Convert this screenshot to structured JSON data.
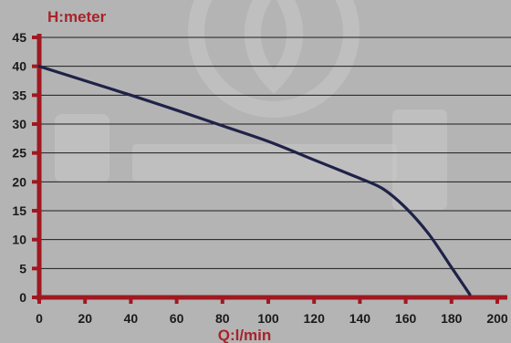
{
  "chart_data": {
    "type": "line",
    "xlabel": "Q:l/min",
    "ylabel": "H:meter",
    "xlim": [
      0,
      200
    ],
    "ylim": [
      0,
      45
    ],
    "x_ticks": [
      0,
      20,
      40,
      60,
      80,
      100,
      120,
      140,
      160,
      180,
      200
    ],
    "y_ticks": [
      0,
      5,
      10,
      15,
      20,
      25,
      30,
      35,
      40,
      45
    ],
    "grid": "horizontal",
    "series": [
      {
        "x": [
          0,
          20,
          40,
          60,
          80,
          100,
          120,
          140,
          150,
          160,
          170,
          180,
          188
        ],
        "y": [
          40,
          37.5,
          35,
          32.4,
          29.7,
          27,
          23.8,
          20.6,
          18.8,
          15.5,
          11,
          5.2,
          0.5
        ]
      }
    ],
    "colors": {
      "background": "#b4b4b4",
      "axis": "#a01820",
      "axis_title": "#a8232b",
      "line": "#1f2248",
      "grid": "#1e1e1e"
    }
  }
}
